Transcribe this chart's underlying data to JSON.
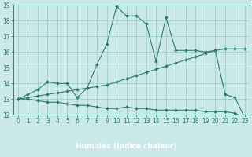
{
  "xlabel": "Humidex (Indice chaleur)",
  "bg_color": "#cce9e9",
  "plot_bg_color": "#cce9e9",
  "xlabel_bg_color": "#5a9ea0",
  "line_color": "#2e7d6e",
  "grid_color": "#a0cccc",
  "xlim": [
    -0.5,
    23.5
  ],
  "ylim": [
    12,
    19
  ],
  "xticks": [
    0,
    1,
    2,
    3,
    4,
    5,
    6,
    7,
    8,
    9,
    10,
    11,
    12,
    13,
    14,
    15,
    16,
    17,
    18,
    19,
    20,
    21,
    22,
    23
  ],
  "yticks": [
    12,
    13,
    14,
    15,
    16,
    17,
    18,
    19
  ],
  "line1_x": [
    0,
    1,
    2,
    3,
    4,
    5,
    6,
    7,
    8,
    9,
    10,
    11,
    12,
    13,
    14,
    15,
    16,
    17,
    18,
    19,
    20,
    21,
    22,
    23
  ],
  "line1_y": [
    13.0,
    13.3,
    13.6,
    14.1,
    14.0,
    14.0,
    13.1,
    13.7,
    15.2,
    16.5,
    18.9,
    18.3,
    18.3,
    17.8,
    15.4,
    18.2,
    16.1,
    16.1,
    16.1,
    16.0,
    16.1,
    13.3,
    13.1,
    11.8
  ],
  "line2_x": [
    0,
    1,
    2,
    3,
    4,
    5,
    6,
    7,
    8,
    9,
    10,
    11,
    12,
    13,
    14,
    15,
    16,
    17,
    18,
    19,
    20,
    21,
    22,
    23
  ],
  "line2_y": [
    13.0,
    13.1,
    13.2,
    13.3,
    13.4,
    13.5,
    13.6,
    13.7,
    13.8,
    13.9,
    14.1,
    14.3,
    14.5,
    14.7,
    14.9,
    15.1,
    15.3,
    15.5,
    15.7,
    15.9,
    16.1,
    16.2,
    16.2,
    16.2
  ],
  "line3_x": [
    0,
    1,
    2,
    3,
    4,
    5,
    6,
    7,
    8,
    9,
    10,
    11,
    12,
    13,
    14,
    15,
    16,
    17,
    18,
    19,
    20,
    21,
    22,
    23
  ],
  "line3_y": [
    13.0,
    13.0,
    12.9,
    12.8,
    12.8,
    12.7,
    12.6,
    12.6,
    12.5,
    12.4,
    12.4,
    12.5,
    12.4,
    12.4,
    12.3,
    12.3,
    12.3,
    12.3,
    12.3,
    12.2,
    12.2,
    12.2,
    12.1,
    11.8
  ]
}
